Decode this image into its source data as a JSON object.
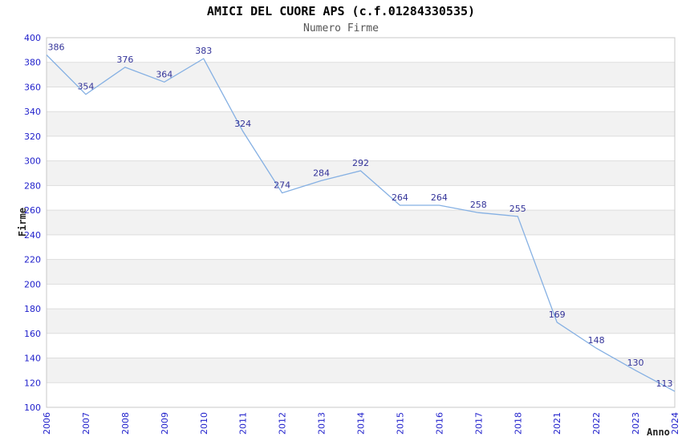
{
  "header": {
    "title": "AMICI DEL CUORE APS (c.f.01284330535)",
    "subtitle": "Numero Firme"
  },
  "chart_data": {
    "type": "line",
    "title": "AMICI DEL CUORE APS (c.f.01284330535)",
    "subtitle": "Numero Firme",
    "xlabel": "Anno",
    "ylabel": "Firme",
    "categories": [
      "2006",
      "2007",
      "2008",
      "2009",
      "2010",
      "2011",
      "2012",
      "2013",
      "2014",
      "2015",
      "2016",
      "2017",
      "2018",
      "2021",
      "2022",
      "2023",
      "2024"
    ],
    "values": [
      386,
      354,
      376,
      364,
      383,
      324,
      274,
      284,
      292,
      264,
      264,
      258,
      255,
      169,
      148,
      130,
      113
    ],
    "ylim": [
      100,
      400
    ],
    "ytick_step": 20,
    "yticks": [
      400,
      380,
      360,
      340,
      320,
      300,
      280,
      260,
      240,
      220,
      200,
      180,
      160,
      140,
      120,
      100
    ],
    "grid": "horizontal-bands-alternating",
    "legend": "none",
    "point_labels": true,
    "colors": {
      "line": "#85b0e3",
      "point_label": "#333399",
      "tick_label": "#2222cc",
      "band": "#f2f2f2",
      "gridline": "#dddddd",
      "border": "#c8c8c8",
      "title": "#000000",
      "subtitle": "#555555",
      "axis_label": "#222222"
    }
  }
}
